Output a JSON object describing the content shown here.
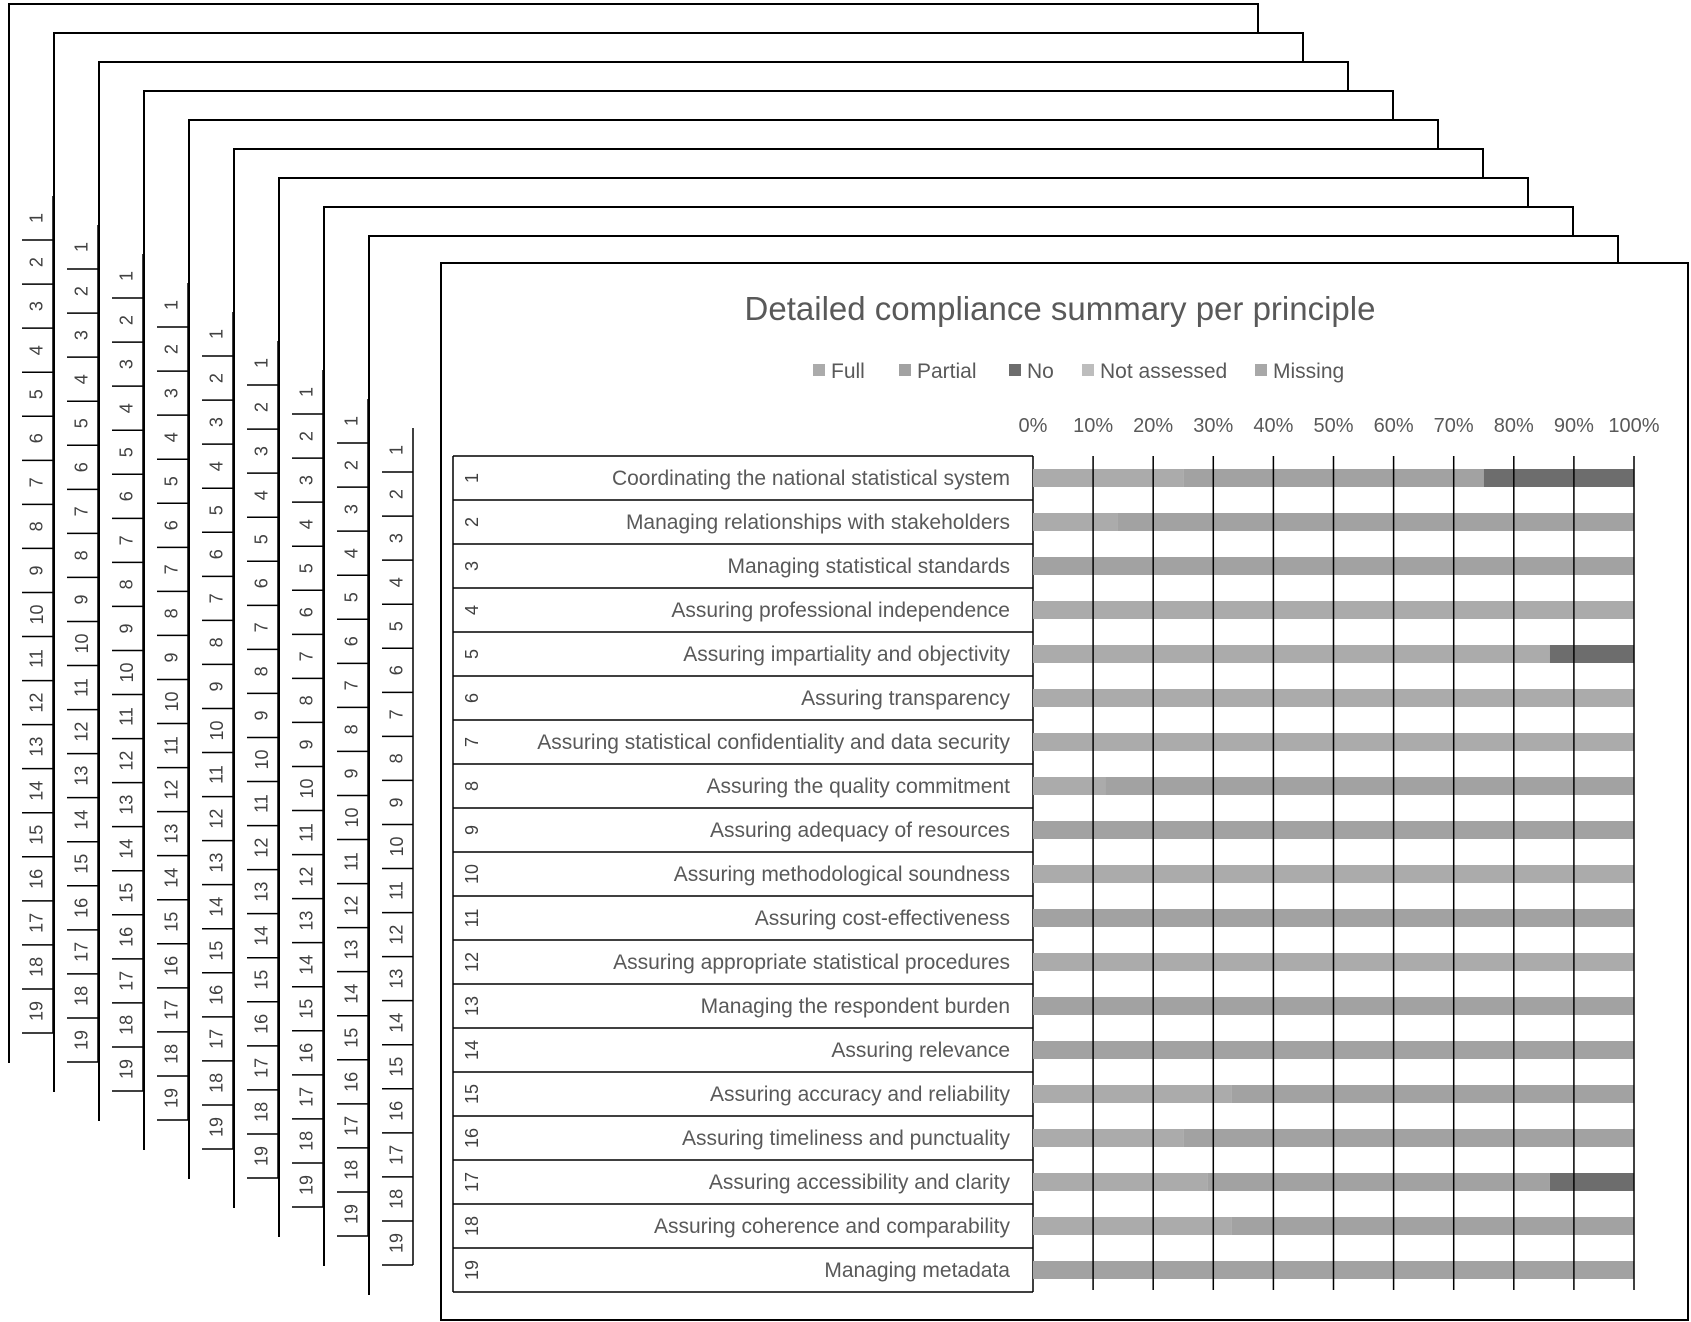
{
  "chart_data": {
    "type": "bar",
    "orientation": "horizontal",
    "stacked": "percent",
    "title": "Detailed compliance summary per principle",
    "legend_position": "top",
    "xlim": [
      0,
      100
    ],
    "x_ticks": [
      "0%",
      "10%",
      "20%",
      "30%",
      "40%",
      "50%",
      "60%",
      "70%",
      "80%",
      "90%",
      "100%"
    ],
    "grid": true,
    "categories": [
      {
        "num": "1",
        "label": "Coordinating the national statistical system"
      },
      {
        "num": "2",
        "label": "Managing relationships with stakeholders"
      },
      {
        "num": "3",
        "label": "Managing statistical standards"
      },
      {
        "num": "4",
        "label": "Assuring professional independence"
      },
      {
        "num": "5",
        "label": "Assuring impartiality and objectivity"
      },
      {
        "num": "6",
        "label": "Assuring transparency"
      },
      {
        "num": "7",
        "label": "Assuring statistical confidentiality and data security"
      },
      {
        "num": "8",
        "label": "Assuring the quality commitment"
      },
      {
        "num": "9",
        "label": "Assuring adequacy of resources"
      },
      {
        "num": "10",
        "label": "Assuring methodological soundness"
      },
      {
        "num": "11",
        "label": "Assuring cost-effectiveness"
      },
      {
        "num": "12",
        "label": "Assuring appropriate statistical procedures"
      },
      {
        "num": "13",
        "label": "Managing the respondent burden"
      },
      {
        "num": "14",
        "label": "Assuring relevance"
      },
      {
        "num": "15",
        "label": "Assuring accuracy and reliability"
      },
      {
        "num": "16",
        "label": "Assuring timeliness and punctuality"
      },
      {
        "num": "17",
        "label": "Assuring accessibility and clarity"
      },
      {
        "num": "18",
        "label": "Assuring coherence and comparability"
      },
      {
        "num": "19",
        "label": "Managing metadata"
      }
    ],
    "series": [
      {
        "name": "Full",
        "color": "#ababab",
        "values": [
          25,
          14,
          0,
          100,
          86,
          100,
          100,
          12,
          0,
          100,
          0,
          100,
          0,
          0,
          33,
          25,
          29,
          33,
          0
        ]
      },
      {
        "name": "Partial",
        "color": "#a2a2a2",
        "values": [
          50,
          86,
          100,
          0,
          0,
          0,
          0,
          88,
          100,
          0,
          100,
          0,
          100,
          100,
          67,
          75,
          57,
          67,
          100
        ]
      },
      {
        "name": "No",
        "color": "#6d6d6d",
        "values": [
          25,
          0,
          0,
          0,
          14,
          0,
          0,
          0,
          0,
          0,
          0,
          0,
          0,
          0,
          0,
          0,
          14,
          0,
          0
        ]
      },
      {
        "name": "Not assessed",
        "color": "#bdbdbd",
        "values": [
          0,
          0,
          0,
          0,
          0,
          0,
          0,
          0,
          0,
          0,
          0,
          0,
          0,
          0,
          0,
          0,
          0,
          0,
          0
        ]
      },
      {
        "name": "Missing",
        "color": "#a8a8a8",
        "values": [
          0,
          0,
          0,
          0,
          0,
          0,
          0,
          0,
          0,
          0,
          0,
          0,
          0,
          0,
          0,
          0,
          0,
          0,
          0
        ]
      }
    ]
  }
}
